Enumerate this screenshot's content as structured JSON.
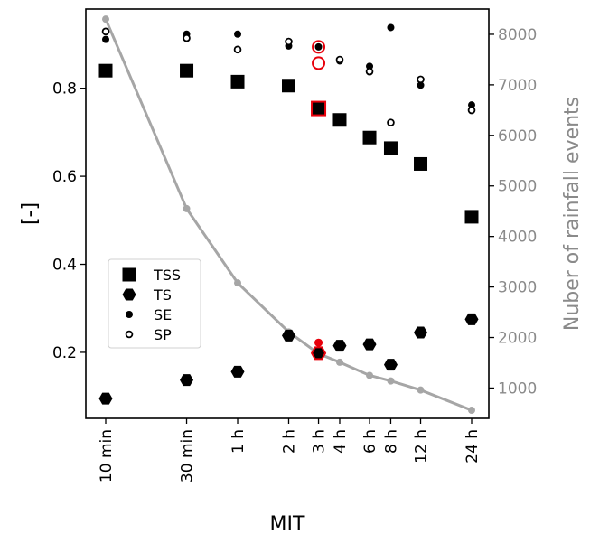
{
  "chart_data": {
    "type": "scatter",
    "categories": [
      "10 min",
      "30 min",
      "1 h",
      "2 h",
      "3 h",
      "4 h",
      "6 h",
      "8 h",
      "12 h",
      "24 h"
    ],
    "x_minutes": [
      10,
      30,
      60,
      120,
      180,
      240,
      360,
      480,
      720,
      1440
    ],
    "x_scale": "log",
    "xlabel": "MIT",
    "ylabel": "[-]",
    "ylabel_right": "Nuber of rainfall events",
    "ylim": [
      0.05,
      0.98
    ],
    "ylim_right": [
      400,
      8500
    ],
    "yticks": [
      0.2,
      0.4,
      0.6,
      0.8
    ],
    "yticks_right": [
      1000,
      2000,
      3000,
      4000,
      5000,
      6000,
      7000,
      8000
    ],
    "series": [
      {
        "name": "TSS",
        "marker": "square",
        "values": [
          0.84,
          0.84,
          0.815,
          0.806,
          0.754,
          0.728,
          0.688,
          0.664,
          0.628,
          0.508
        ]
      },
      {
        "name": "TS",
        "marker": "hexagon",
        "values": [
          0.095,
          0.137,
          0.156,
          0.238,
          0.198,
          0.215,
          0.218,
          0.172,
          0.245,
          0.275
        ]
      },
      {
        "name": "SE",
        "marker": "filled-circle",
        "values": [
          0.911,
          0.923,
          0.923,
          0.896,
          0.894,
          0.862,
          0.85,
          0.938,
          0.807,
          0.762
        ]
      },
      {
        "name": "SP",
        "marker": "open-circle",
        "values": [
          0.929,
          0.914,
          0.888,
          0.906,
          0.894,
          0.865,
          0.838,
          0.722,
          0.82,
          0.75
        ]
      },
      {
        "name": "",
        "axis": "right",
        "type": "line",
        "values": [
          8300,
          4550,
          3080,
          2110,
          1680,
          1510,
          1250,
          1140,
          960,
          560
        ]
      }
    ],
    "highlight": {
      "category": "3 h",
      "color": "#e8000b",
      "extra_points": {
        "SP": 0.857,
        "TS": 0.222
      }
    },
    "legend": {
      "position": "lower-left",
      "entries": [
        "TSS",
        "TS",
        "SE",
        "SP"
      ]
    },
    "grid": false
  }
}
